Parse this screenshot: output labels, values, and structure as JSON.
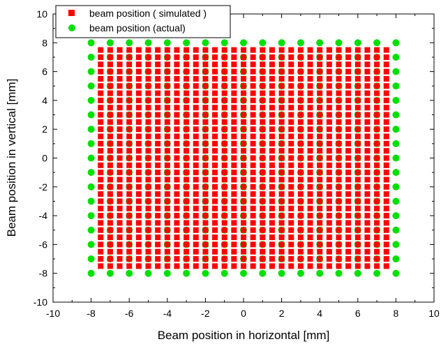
{
  "chart_data": {
    "type": "scatter",
    "xlabel": "Beam position in horizontal [mm]",
    "ylabel": "Beam position in vertical [mm]",
    "xlim": [
      -10,
      10
    ],
    "ylim": [
      -10,
      10
    ],
    "xticks": [
      -10,
      -8,
      -6,
      -4,
      -2,
      0,
      2,
      4,
      6,
      8,
      10
    ],
    "yticks": [
      -10,
      -8,
      -6,
      -4,
      -2,
      0,
      2,
      4,
      6,
      8,
      10
    ],
    "legend_position": "top-left",
    "series": [
      {
        "name": "beam position ( simulated )",
        "marker": "square",
        "color": "#ff0000",
        "grid_x": [
          -7.5,
          -7.0,
          -6.5,
          -6.0,
          -5.5,
          -5.0,
          -4.5,
          -4.0,
          -3.5,
          -3.0,
          -2.5,
          -2.0,
          -1.5,
          -1.0,
          -0.5,
          0.0,
          0.5,
          1.0,
          1.5,
          2.0,
          2.5,
          3.0,
          3.5,
          4.0,
          4.5,
          5.0,
          5.5,
          6.0,
          6.5,
          7.0,
          7.5
        ],
        "grid_y": [
          7.5,
          7.0,
          6.5,
          6.0,
          5.5,
          5.0,
          4.5,
          4.0,
          3.5,
          3.0,
          2.5,
          2.0,
          1.5,
          1.0,
          0.5,
          0.0,
          -0.5,
          -1.0,
          -1.5,
          -2.0,
          -2.5,
          -3.0,
          -3.5,
          -4.0,
          -4.5,
          -5.0,
          -5.5,
          -6.0,
          -6.5,
          -7.0,
          -7.5
        ]
      },
      {
        "name": "beam position (actual)",
        "marker": "circle",
        "color": "#00e000",
        "grid_x": [
          -8,
          -7,
          -6,
          -5,
          -4,
          -3,
          -2,
          -1,
          0,
          1,
          2,
          3,
          4,
          5,
          6,
          7,
          8
        ],
        "grid_y": [
          8,
          7,
          6,
          5,
          4,
          3,
          2,
          1,
          0,
          -1,
          -2,
          -3,
          -4,
          -5,
          -6,
          -7,
          -8
        ]
      }
    ]
  }
}
